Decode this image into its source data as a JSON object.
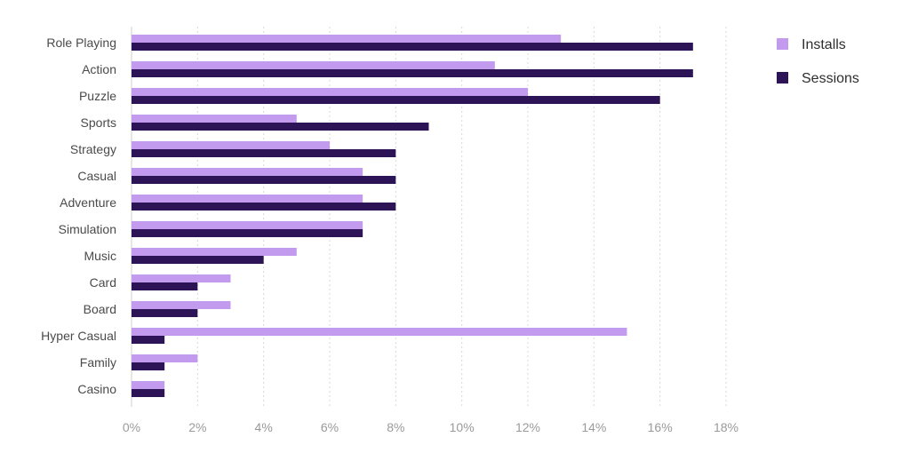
{
  "chart_data": {
    "type": "bar",
    "orientation": "horizontal",
    "categories": [
      "Role Playing",
      "Action",
      "Puzzle",
      "Sports",
      "Strategy",
      "Casual",
      "Adventure",
      "Simulation",
      "Music",
      "Card",
      "Board",
      "Hyper Casual",
      "Family",
      "Casino"
    ],
    "series": [
      {
        "name": "Installs",
        "color": "#c39bee",
        "values": [
          13,
          11,
          12,
          5,
          6,
          7,
          7,
          7,
          5,
          3,
          3,
          15,
          2,
          1
        ]
      },
      {
        "name": "Sessions",
        "color": "#2d1456",
        "values": [
          17,
          17,
          16,
          9,
          8,
          8,
          8,
          7,
          4,
          2,
          2,
          1,
          1,
          1
        ]
      }
    ],
    "xlim": [
      0,
      18
    ],
    "xticks": [
      0,
      2,
      4,
      6,
      8,
      10,
      12,
      14,
      16,
      18
    ],
    "xtick_labels": [
      "0%",
      "2%",
      "4%",
      "6%",
      "8%",
      "10%",
      "12%",
      "14%",
      "16%",
      "18%"
    ],
    "grid": true,
    "legend_position": "top-right",
    "title": "",
    "xlabel": "",
    "ylabel": ""
  }
}
